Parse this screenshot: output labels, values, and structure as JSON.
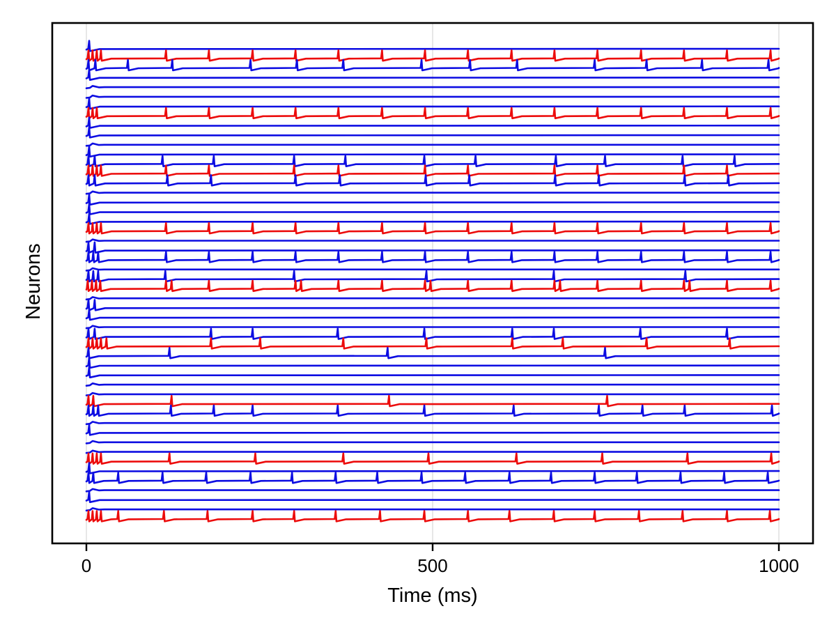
{
  "chart_data": {
    "type": "line",
    "subtype": "membrane-potential-traces",
    "title": "",
    "xlabel": "Time (ms)",
    "ylabel": "Neurons",
    "xlim": [
      0,
      1000
    ],
    "xticks": [
      0,
      500,
      1000
    ],
    "xtick_labels": [
      "0",
      "500",
      "1000"
    ],
    "grid": "vertical-at-xticks",
    "legend": "none",
    "colors": {
      "excitatory": "#0d0de2",
      "inhibitory": "#ec0c0c",
      "grid": "#e7e7e7",
      "axis": "#000000",
      "background": "#ffffff"
    },
    "n_neurons": 50,
    "neurons": [
      {
        "id": 1,
        "type": "excitatory",
        "spikes": [
          4
        ]
      },
      {
        "id": 2,
        "type": "inhibitory",
        "spikes": [
          3,
          9,
          15,
          21,
          115,
          177,
          240,
          302,
          364,
          427,
          489,
          551,
          614,
          676,
          738,
          801,
          863,
          925,
          988
        ]
      },
      {
        "id": 3,
        "type": "excitatory",
        "spikes": [
          3,
          13,
          60,
          124,
          237,
          304,
          371,
          484,
          554,
          622,
          734,
          809,
          889,
          985
        ]
      },
      {
        "id": 4,
        "type": "excitatory",
        "spikes": [
          4
        ]
      },
      {
        "id": 5,
        "type": "excitatory",
        "spikes": []
      },
      {
        "id": 6,
        "type": "excitatory",
        "spikes": []
      },
      {
        "id": 7,
        "type": "excitatory",
        "spikes": [
          4
        ]
      },
      {
        "id": 8,
        "type": "inhibitory",
        "spikes": [
          3,
          9,
          15,
          115,
          177,
          240,
          302,
          364,
          427,
          489,
          551,
          614,
          676,
          738,
          801,
          863,
          925,
          988
        ]
      },
      {
        "id": 9,
        "type": "excitatory",
        "spikes": [
          4
        ]
      },
      {
        "id": 10,
        "type": "excitatory",
        "spikes": [
          4
        ]
      },
      {
        "id": 11,
        "type": "excitatory",
        "spikes": []
      },
      {
        "id": 12,
        "type": "excitatory",
        "spikes": [
          4
        ]
      },
      {
        "id": 13,
        "type": "excitatory",
        "spikes": [
          3,
          12,
          110,
          184,
          300,
          374,
          488,
          562,
          678,
          749,
          861,
          936
        ]
      },
      {
        "id": 14,
        "type": "inhibitory",
        "spikes": [
          3,
          9,
          15,
          21,
          115,
          177,
          300,
          364,
          489,
          551,
          676,
          738,
          863,
          925
        ]
      },
      {
        "id": 15,
        "type": "excitatory",
        "spikes": [
          3,
          12,
          117,
          180,
          302,
          366,
          490,
          553,
          677,
          740,
          864,
          927
        ]
      },
      {
        "id": 16,
        "type": "excitatory",
        "spikes": []
      },
      {
        "id": 17,
        "type": "excitatory",
        "spikes": [
          4
        ]
      },
      {
        "id": 18,
        "type": "excitatory",
        "spikes": [
          4
        ]
      },
      {
        "id": 19,
        "type": "excitatory",
        "spikes": [
          4
        ]
      },
      {
        "id": 20,
        "type": "inhibitory",
        "spikes": [
          3,
          9,
          15,
          21,
          115,
          177,
          240,
          302,
          364,
          427,
          489,
          551,
          614,
          676,
          738,
          801,
          863,
          925,
          988
        ]
      },
      {
        "id": 21,
        "type": "excitatory",
        "spikes": []
      },
      {
        "id": 22,
        "type": "excitatory",
        "spikes": [
          3,
          12
        ]
      },
      {
        "id": 23,
        "type": "excitatory",
        "spikes": [
          3,
          10,
          17,
          115,
          177,
          240,
          302,
          364,
          427,
          489,
          551,
          614,
          676,
          738,
          801,
          863,
          925,
          988
        ]
      },
      {
        "id": 24,
        "type": "excitatory",
        "spikes": []
      },
      {
        "id": 25,
        "type": "excitatory",
        "spikes": [
          3,
          10,
          17,
          114,
          300,
          491,
          675,
          865
        ]
      },
      {
        "id": 26,
        "type": "inhibitory",
        "spikes": [
          2,
          8,
          14,
          20,
          115,
          123,
          177,
          240,
          302,
          310,
          364,
          427,
          489,
          497,
          551,
          614,
          676,
          684,
          738,
          801,
          863,
          871,
          925,
          988
        ]
      },
      {
        "id": 27,
        "type": "excitatory",
        "spikes": []
      },
      {
        "id": 28,
        "type": "excitatory",
        "spikes": [
          3,
          12
        ]
      },
      {
        "id": 29,
        "type": "excitatory",
        "spikes": [
          4
        ]
      },
      {
        "id": 30,
        "type": "excitatory",
        "spikes": []
      },
      {
        "id": 31,
        "type": "excitatory",
        "spikes": [
          3,
          12,
          180,
          240,
          363,
          488,
          615,
          675,
          800,
          925
        ]
      },
      {
        "id": 32,
        "type": "inhibitory",
        "spikes": [
          3,
          9,
          15,
          21,
          29,
          180,
          251,
          371,
          491,
          615,
          688,
          809,
          929
        ]
      },
      {
        "id": 33,
        "type": "excitatory",
        "spikes": [
          3,
          120,
          435,
          749
        ]
      },
      {
        "id": 34,
        "type": "excitatory",
        "spikes": [
          4
        ]
      },
      {
        "id": 35,
        "type": "excitatory",
        "spikes": [
          4
        ]
      },
      {
        "id": 36,
        "type": "excitatory",
        "spikes": []
      },
      {
        "id": 37,
        "type": "excitatory",
        "spikes": []
      },
      {
        "id": 38,
        "type": "inhibitory",
        "spikes": [
          3,
          10,
          123,
          437,
          752
        ]
      },
      {
        "id": 39,
        "type": "excitatory",
        "spikes": [
          3,
          10,
          17,
          122,
          184,
          240,
          363,
          488,
          617,
          740,
          803,
          864,
          990
        ]
      },
      {
        "id": 40,
        "type": "excitatory",
        "spikes": []
      },
      {
        "id": 41,
        "type": "excitatory",
        "spikes": [
          4
        ]
      },
      {
        "id": 42,
        "type": "excitatory",
        "spikes": []
      },
      {
        "id": 43,
        "type": "excitatory",
        "spikes": []
      },
      {
        "id": 44,
        "type": "inhibitory",
        "spikes": [
          3,
          9,
          15,
          21,
          120,
          244,
          371,
          494,
          621,
          745,
          868,
          989
        ]
      },
      {
        "id": 45,
        "type": "excitatory",
        "spikes": [
          4
        ]
      },
      {
        "id": 46,
        "type": "excitatory",
        "spikes": [
          3,
          10,
          46,
          110,
          173,
          237,
          297,
          360,
          420,
          484,
          547,
          611,
          671,
          734,
          795,
          858,
          921,
          984
        ]
      },
      {
        "id": 47,
        "type": "excitatory",
        "spikes": []
      },
      {
        "id": 48,
        "type": "excitatory",
        "spikes": [
          4
        ]
      },
      {
        "id": 49,
        "type": "excitatory",
        "spikes": []
      },
      {
        "id": 50,
        "type": "inhibitory",
        "spikes": [
          3,
          9,
          15,
          21,
          46,
          112,
          175,
          240,
          300,
          360,
          424,
          488,
          551,
          611,
          675,
          734,
          798,
          861,
          925,
          987
        ]
      }
    ]
  }
}
